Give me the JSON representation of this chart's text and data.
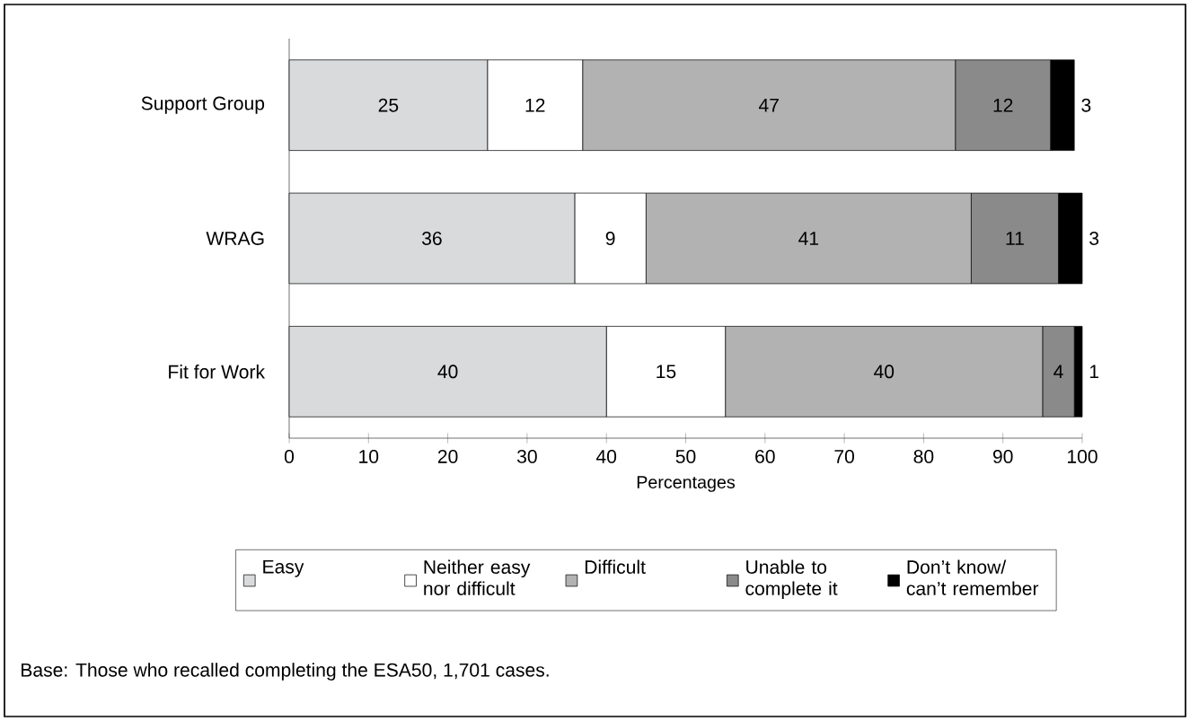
{
  "chart_data": {
    "type": "bar",
    "orientation": "horizontal",
    "stacked": true,
    "categories": [
      "Support Group",
      "WRAG",
      "Fit for Work"
    ],
    "series": [
      {
        "name": "Easy",
        "color": "#d9dadb",
        "values": [
          25,
          36,
          40
        ]
      },
      {
        "name": "Neither easy nor difficult",
        "color": "#ffffff",
        "values": [
          12,
          9,
          15
        ]
      },
      {
        "name": "Difficult",
        "color": "#b2b2b2",
        "values": [
          47,
          41,
          40
        ]
      },
      {
        "name": "Unable to complete it",
        "color": "#8a8a8a",
        "values": [
          12,
          11,
          4
        ]
      },
      {
        "name": "Don’t know/ can’t remember",
        "color": "#000000",
        "values": [
          3,
          3,
          1
        ]
      }
    ],
    "xlim": [
      0,
      100
    ],
    "xticks": [
      0,
      10,
      20,
      30,
      40,
      50,
      60,
      70,
      80,
      90,
      100
    ],
    "xlabel": "Percentages",
    "data_labels": true,
    "legend": "bottom",
    "grid": false,
    "annotations": [
      "Base: Those who recalled completing the ESA50, 1,701 cases."
    ]
  }
}
